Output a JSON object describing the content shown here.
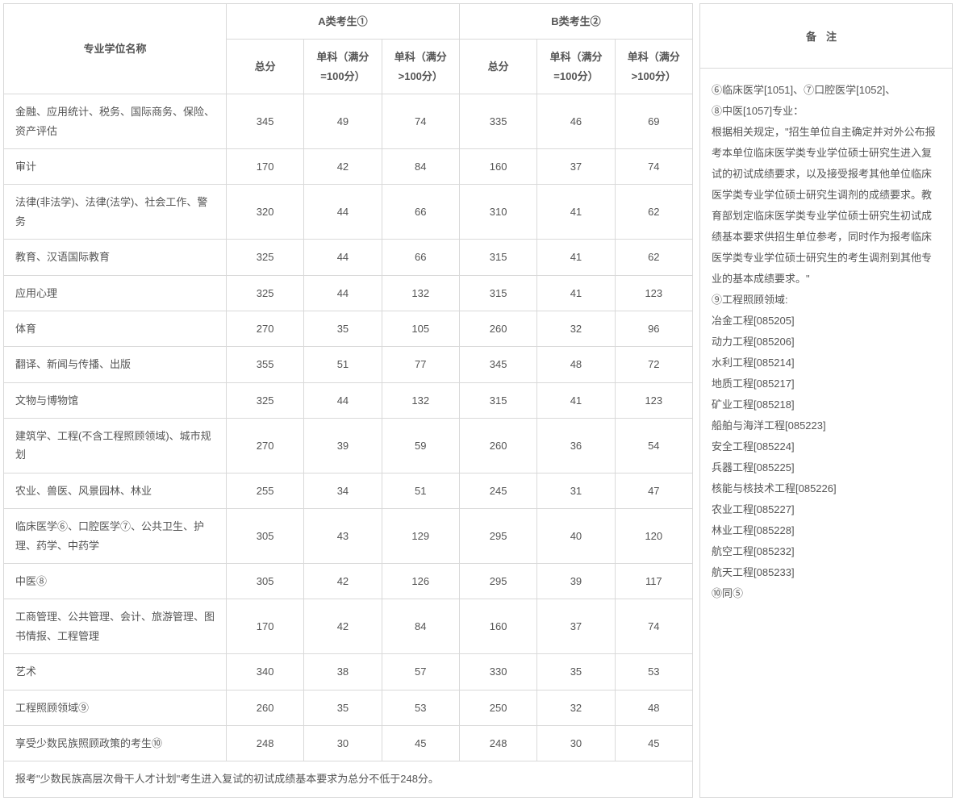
{
  "headers": {
    "col_name": "专业学位名称",
    "group_a": "A类考生①",
    "group_b": "B类考生②",
    "total": "总分",
    "sub_eq100": "单科（满分=100分）",
    "sub_gt100": "单科（满分>100分）",
    "notes_title": "备注"
  },
  "rows": [
    {
      "name": "金融、应用统计、税务、国际商务、保险、资产评估",
      "a_total": "345",
      "a_eq": "49",
      "a_gt": "74",
      "b_total": "335",
      "b_eq": "46",
      "b_gt": "69"
    },
    {
      "name": "审计",
      "a_total": "170",
      "a_eq": "42",
      "a_gt": "84",
      "b_total": "160",
      "b_eq": "37",
      "b_gt": "74"
    },
    {
      "name": "法律(非法学)、法律(法学)、社会工作、警务",
      "a_total": "320",
      "a_eq": "44",
      "a_gt": "66",
      "b_total": "310",
      "b_eq": "41",
      "b_gt": "62"
    },
    {
      "name": "教育、汉语国际教育",
      "a_total": "325",
      "a_eq": "44",
      "a_gt": "66",
      "b_total": "315",
      "b_eq": "41",
      "b_gt": "62"
    },
    {
      "name": "应用心理",
      "a_total": "325",
      "a_eq": "44",
      "a_gt": "132",
      "b_total": "315",
      "b_eq": "41",
      "b_gt": "123"
    },
    {
      "name": "体育",
      "a_total": "270",
      "a_eq": "35",
      "a_gt": "105",
      "b_total": "260",
      "b_eq": "32",
      "b_gt": "96"
    },
    {
      "name": "翻译、新闻与传播、出版",
      "a_total": "355",
      "a_eq": "51",
      "a_gt": "77",
      "b_total": "345",
      "b_eq": "48",
      "b_gt": "72"
    },
    {
      "name": "文物与博物馆",
      "a_total": "325",
      "a_eq": "44",
      "a_gt": "132",
      "b_total": "315",
      "b_eq": "41",
      "b_gt": "123"
    },
    {
      "name": "建筑学、工程(不含工程照顾领域)、城市规划",
      "a_total": "270",
      "a_eq": "39",
      "a_gt": "59",
      "b_total": "260",
      "b_eq": "36",
      "b_gt": "54"
    },
    {
      "name": "农业、兽医、风景园林、林业",
      "a_total": "255",
      "a_eq": "34",
      "a_gt": "51",
      "b_total": "245",
      "b_eq": "31",
      "b_gt": "47"
    },
    {
      "name": "临床医学⑥、口腔医学⑦、公共卫生、护理、药学、中药学",
      "a_total": "305",
      "a_eq": "43",
      "a_gt": "129",
      "b_total": "295",
      "b_eq": "40",
      "b_gt": "120"
    },
    {
      "name": "中医⑧",
      "a_total": "305",
      "a_eq": "42",
      "a_gt": "126",
      "b_total": "295",
      "b_eq": "39",
      "b_gt": "117"
    },
    {
      "name": "工商管理、公共管理、会计、旅游管理、图书情报、工程管理",
      "a_total": "170",
      "a_eq": "42",
      "a_gt": "84",
      "b_total": "160",
      "b_eq": "37",
      "b_gt": "74"
    },
    {
      "name": "艺术",
      "a_total": "340",
      "a_eq": "38",
      "a_gt": "57",
      "b_total": "330",
      "b_eq": "35",
      "b_gt": "53"
    },
    {
      "name": "工程照顾领域⑨",
      "a_total": "260",
      "a_eq": "35",
      "a_gt": "53",
      "b_total": "250",
      "b_eq": "32",
      "b_gt": "48"
    },
    {
      "name": "享受少数民族照顾政策的考生⑩",
      "a_total": "248",
      "a_eq": "30",
      "a_gt": "45",
      "b_total": "248",
      "b_eq": "30",
      "b_gt": "45"
    }
  ],
  "footer": "报考\"少数民族高层次骨干人才计划\"考生进入复试的初试成绩基本要求为总分不低于248分。",
  "notes": [
    "⑥临床医学[1051]、⑦口腔医学[1052]、",
    "⑧中医[1057]专业：",
    "根据相关规定，\"招生单位自主确定并对外公布报考本单位临床医学类专业学位硕士研究生进入复试的初试成绩要求，以及接受报考其他单位临床医学类专业学位硕士研究生调剂的成绩要求。教育部划定临床医学类专业学位硕士研究生初试成绩基本要求供招生单位参考，同时作为报考临床医学类专业学位硕士研究生的考生调剂到其他专业的基本成绩要求。\"",
    "⑨工程照顾领域:",
    "冶金工程[085205]",
    "动力工程[085206]",
    "水利工程[085214]",
    "地质工程[085217]",
    "矿业工程[085218]",
    "船舶与海洋工程[085223]",
    "安全工程[085224]",
    "兵器工程[085225]",
    "核能与核技术工程[085226]",
    "农业工程[085227]",
    "林业工程[085228]",
    "航空工程[085232]",
    "航天工程[085233]",
    "⑩同⑤"
  ],
  "style": {
    "border_color": "#d9d9d9",
    "text_color": "#555555",
    "background": "#ffffff"
  }
}
